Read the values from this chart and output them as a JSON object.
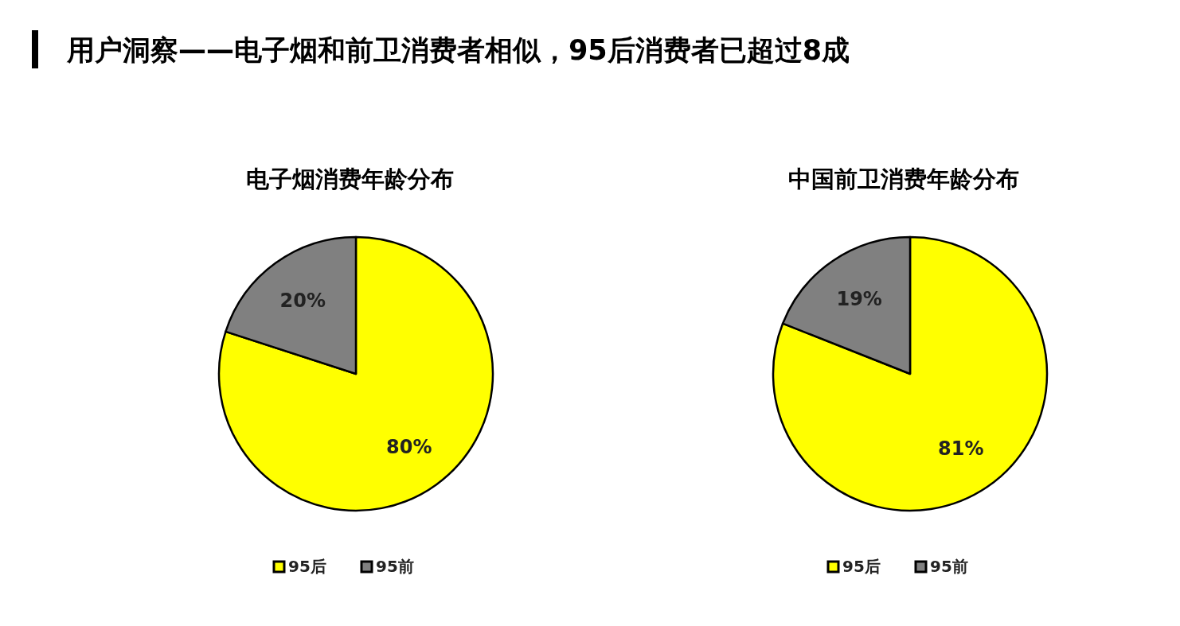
{
  "chart_data": [
    {
      "type": "other",
      "title": "用户洞察——电子烟和前卫消费者相似，95后消费者已超过8成"
    },
    {
      "type": "pie",
      "title": "电子烟消费年龄分布",
      "categories": [
        "95后",
        "95前"
      ],
      "values": [
        80,
        20
      ],
      "colors": [
        "#ffff00",
        "#808080"
      ],
      "value_labels": [
        "80%",
        "20%"
      ],
      "legend": "bottom"
    },
    {
      "type": "pie",
      "title": "中国前卫消费年龄分布",
      "categories": [
        "95后",
        "95前"
      ],
      "values": [
        81,
        19
      ],
      "colors": [
        "#ffff00",
        "#808080"
      ],
      "value_labels": [
        "81%",
        "19%"
      ],
      "legend": "bottom"
    }
  ]
}
